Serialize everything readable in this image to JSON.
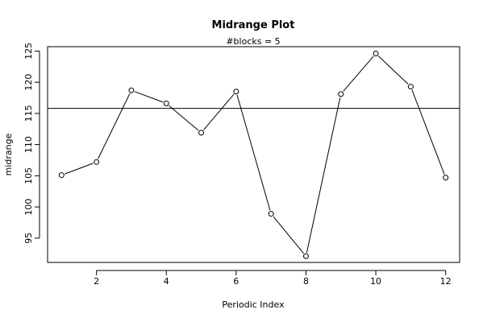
{
  "chart_data": {
    "type": "line",
    "title": "Midrange Plot",
    "subtitle": "#blocks =  5",
    "xlabel": "Periodic Index",
    "ylabel": "midrange",
    "xlim": [
      0.6,
      12.4
    ],
    "ylim": [
      91.1,
      125.7
    ],
    "x_ticks": [
      2,
      4,
      6,
      8,
      10,
      12
    ],
    "y_ticks": [
      95,
      100,
      105,
      110,
      115,
      120,
      125
    ],
    "grid": false,
    "legend": "none",
    "series": [
      {
        "x": [
          1,
          2,
          3,
          4,
          5,
          6,
          7,
          8,
          9,
          10,
          11,
          12
        ],
        "values": [
          105.1,
          107.2,
          118.7,
          116.6,
          111.9,
          118.5,
          98.9,
          92.1,
          118.1,
          124.6,
          119.3,
          104.7
        ],
        "color": "#000000",
        "marker": "open-circle"
      }
    ],
    "reference_line": {
      "y": 115.8,
      "color": "#000000"
    }
  }
}
